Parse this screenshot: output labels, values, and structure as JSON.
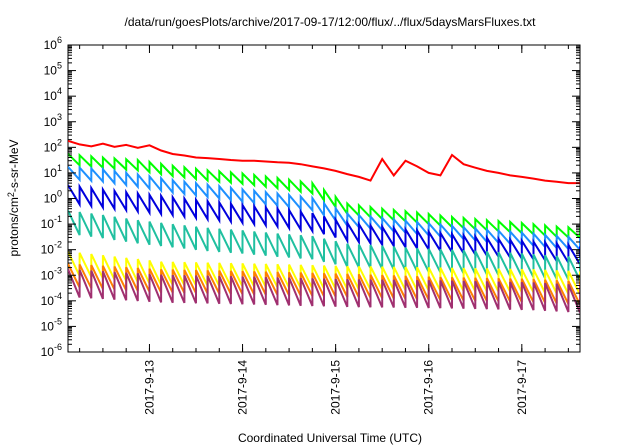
{
  "chart_data": {
    "type": "line",
    "title": "/data/run/goesPlots/archive/2017-09-17/12:00/flux/../flux/5daysMarsFluxes.txt",
    "xlabel": "Coordinated Universal Time (UTC)",
    "ylabel_main": "protons/cm",
    "ylabel_sup": "2",
    "ylabel_tail": "-s-sr-MeV",
    "ylog": true,
    "ylim": [
      1e-06,
      1000000.0
    ],
    "xlim": [
      "2017-09-12 03:00",
      "2017-09-17 15:00"
    ],
    "xticks": [
      {
        "value": "2017-09-13",
        "label": "2017-9-13"
      },
      {
        "value": "2017-09-14",
        "label": "2017-9-14"
      },
      {
        "value": "2017-09-15",
        "label": "2017-9-15"
      },
      {
        "value": "2017-09-16",
        "label": "2017-9-16"
      },
      {
        "value": "2017-09-17",
        "label": "2017-9-17"
      }
    ],
    "yticks": [
      {
        "exp": "-6"
      },
      {
        "exp": "-5"
      },
      {
        "exp": "-4"
      },
      {
        "exp": "-3"
      },
      {
        "exp": "-2"
      },
      {
        "exp": "-1"
      },
      {
        "exp": "0"
      },
      {
        "exp": "1"
      },
      {
        "exp": "2"
      },
      {
        "exp": "3"
      },
      {
        "exp": "4"
      },
      {
        "exp": "5"
      },
      {
        "exp": "6"
      }
    ],
    "ytick_base": "10",
    "grid": false,
    "legend": "none",
    "series": [
      {
        "color": "#ff0000",
        "points": [
          [
            "2017-09-12 03:00",
            180
          ],
          [
            "2017-09-12 06:00",
            130
          ],
          [
            "2017-09-12 09:00",
            110
          ],
          [
            "2017-09-12 12:00",
            140
          ],
          [
            "2017-09-12 15:00",
            105
          ],
          [
            "2017-09-12 18:00",
            125
          ],
          [
            "2017-09-12 21:00",
            95
          ],
          [
            "2017-09-13 00:00",
            120
          ],
          [
            "2017-09-13 03:00",
            75
          ],
          [
            "2017-09-13 06:00",
            55
          ],
          [
            "2017-09-13 09:00",
            48
          ],
          [
            "2017-09-13 12:00",
            40
          ],
          [
            "2017-09-13 15:00",
            38
          ],
          [
            "2017-09-13 18:00",
            35
          ],
          [
            "2017-09-13 21:00",
            32
          ],
          [
            "2017-09-14 00:00",
            30
          ],
          [
            "2017-09-14 03:00",
            30
          ],
          [
            "2017-09-14 06:00",
            28
          ],
          [
            "2017-09-14 09:00",
            26
          ],
          [
            "2017-09-14 12:00",
            25
          ],
          [
            "2017-09-14 15:00",
            22
          ],
          [
            "2017-09-14 18:00",
            18
          ],
          [
            "2017-09-14 21:00",
            15
          ],
          [
            "2017-09-15 00:00",
            12
          ],
          [
            "2017-09-15 03:00",
            9
          ],
          [
            "2017-09-15 06:00",
            7
          ],
          [
            "2017-09-15 09:00",
            5
          ],
          [
            "2017-09-15 12:00",
            35
          ],
          [
            "2017-09-15 15:00",
            8
          ],
          [
            "2017-09-15 18:00",
            30
          ],
          [
            "2017-09-15 21:00",
            18
          ],
          [
            "2017-09-16 00:00",
            10
          ],
          [
            "2017-09-16 03:00",
            8
          ],
          [
            "2017-09-16 06:00",
            50
          ],
          [
            "2017-09-16 09:00",
            22
          ],
          [
            "2017-09-16 12:00",
            16
          ],
          [
            "2017-09-16 15:00",
            12
          ],
          [
            "2017-09-16 18:00",
            10
          ],
          [
            "2017-09-16 21:00",
            8
          ],
          [
            "2017-09-17 00:00",
            7
          ],
          [
            "2017-09-17 03:00",
            6
          ],
          [
            "2017-09-17 06:00",
            5
          ],
          [
            "2017-09-17 09:00",
            4.5
          ],
          [
            "2017-09-17 12:00",
            4
          ],
          [
            "2017-09-17 15:00",
            4
          ]
        ]
      },
      {
        "color": "#00ff00",
        "points": [
          [
            "2017-09-12 03:00",
            35
          ],
          [
            "2017-09-12 12:00",
            25
          ],
          [
            "2017-09-12 21:00",
            20
          ],
          [
            "2017-09-13 06:00",
            12
          ],
          [
            "2017-09-13 15:00",
            8
          ],
          [
            "2017-09-14 00:00",
            6
          ],
          [
            "2017-09-14 09:00",
            4
          ],
          [
            "2017-09-14 18:00",
            2.5
          ],
          [
            "2017-09-15 03:00",
            0.4
          ],
          [
            "2017-09-15 12:00",
            0.25
          ],
          [
            "2017-09-15 21:00",
            0.18
          ],
          [
            "2017-09-16 06:00",
            0.12
          ],
          [
            "2017-09-16 15:00",
            0.09
          ],
          [
            "2017-09-17 00:00",
            0.07
          ],
          [
            "2017-09-17 09:00",
            0.05
          ],
          [
            "2017-09-17 15:00",
            0.045
          ]
        ],
        "amplitude": 2.5
      },
      {
        "color": "#1e90ff",
        "points": [
          [
            "2017-09-12 03:00",
            10
          ],
          [
            "2017-09-12 12:00",
            8
          ],
          [
            "2017-09-12 21:00",
            5
          ],
          [
            "2017-09-13 06:00",
            3
          ],
          [
            "2017-09-13 15:00",
            2
          ],
          [
            "2017-09-14 00:00",
            1.3
          ],
          [
            "2017-09-14 09:00",
            0.9
          ],
          [
            "2017-09-14 18:00",
            0.6
          ],
          [
            "2017-09-15 03:00",
            0.15
          ],
          [
            "2017-09-15 12:00",
            0.1
          ],
          [
            "2017-09-15 21:00",
            0.07
          ],
          [
            "2017-09-16 06:00",
            0.05
          ],
          [
            "2017-09-16 15:00",
            0.035
          ],
          [
            "2017-09-17 00:00",
            0.027
          ],
          [
            "2017-09-17 09:00",
            0.02
          ],
          [
            "2017-09-17 15:00",
            0.017
          ]
        ],
        "amplitude": 3
      },
      {
        "color": "#0000dd",
        "points": [
          [
            "2017-09-12 03:00",
            1.5
          ],
          [
            "2017-09-12 12:00",
            1.0
          ],
          [
            "2017-09-12 21:00",
            0.7
          ],
          [
            "2017-09-13 06:00",
            0.5
          ],
          [
            "2017-09-13 15:00",
            0.35
          ],
          [
            "2017-09-14 00:00",
            0.25
          ],
          [
            "2017-09-14 09:00",
            0.18
          ],
          [
            "2017-09-14 18:00",
            0.12
          ],
          [
            "2017-09-15 03:00",
            0.05
          ],
          [
            "2017-09-15 12:00",
            0.035
          ],
          [
            "2017-09-15 21:00",
            0.025
          ],
          [
            "2017-09-16 06:00",
            0.018
          ],
          [
            "2017-09-16 15:00",
            0.013
          ],
          [
            "2017-09-17 00:00",
            0.01
          ],
          [
            "2017-09-17 09:00",
            0.008
          ],
          [
            "2017-09-17 15:00",
            0.006
          ]
        ],
        "amplitude": 5
      },
      {
        "color": "#20c0a0",
        "points": [
          [
            "2017-09-12 03:00",
            0.12
          ],
          [
            "2017-09-12 12:00",
            0.08
          ],
          [
            "2017-09-12 21:00",
            0.05
          ],
          [
            "2017-09-13 06:00",
            0.035
          ],
          [
            "2017-09-13 15:00",
            0.025
          ],
          [
            "2017-09-14 00:00",
            0.02
          ],
          [
            "2017-09-14 09:00",
            0.015
          ],
          [
            "2017-09-14 18:00",
            0.012
          ],
          [
            "2017-09-15 03:00",
            0.006
          ],
          [
            "2017-09-15 12:00",
            0.005
          ],
          [
            "2017-09-15 21:00",
            0.004
          ],
          [
            "2017-09-16 06:00",
            0.0035
          ],
          [
            "2017-09-16 15:00",
            0.003
          ],
          [
            "2017-09-17 00:00",
            0.0025
          ],
          [
            "2017-09-17 09:00",
            0.002
          ],
          [
            "2017-09-17 15:00",
            0.0018
          ]
        ],
        "amplitude": 8
      },
      {
        "color": "#ffff00",
        "points": [
          [
            "2017-09-12 03:00",
            0.003
          ],
          [
            "2017-09-13 03:00",
            0.0012
          ],
          [
            "2017-09-14 03:00",
            0.001
          ],
          [
            "2017-09-15 03:00",
            0.0008
          ],
          [
            "2017-09-16 03:00",
            0.0007
          ],
          [
            "2017-09-17 03:00",
            0.0006
          ],
          [
            "2017-09-17 15:00",
            0.0005
          ]
        ],
        "amplitude": 8
      },
      {
        "color": "#ff8000",
        "points": [
          [
            "2017-09-12 03:00",
            0.001
          ],
          [
            "2017-09-13 03:00",
            0.0006
          ],
          [
            "2017-09-14 03:00",
            0.0005
          ],
          [
            "2017-09-15 03:00",
            0.0004
          ],
          [
            "2017-09-16 03:00",
            0.0003
          ],
          [
            "2017-09-17 03:00",
            0.00025
          ],
          [
            "2017-09-17 15:00",
            0.0002
          ]
        ],
        "amplitude": 8
      },
      {
        "color": "#a03070",
        "points": [
          [
            "2017-09-12 03:00",
            0.0005
          ],
          [
            "2017-09-13 03:00",
            0.0003
          ],
          [
            "2017-09-14 03:00",
            0.00025
          ],
          [
            "2017-09-15 03:00",
            0.0002
          ],
          [
            "2017-09-16 03:00",
            0.00018
          ],
          [
            "2017-09-17 03:00",
            0.00015
          ],
          [
            "2017-09-17 15:00",
            0.00012
          ]
        ],
        "amplitude": 12
      }
    ]
  }
}
